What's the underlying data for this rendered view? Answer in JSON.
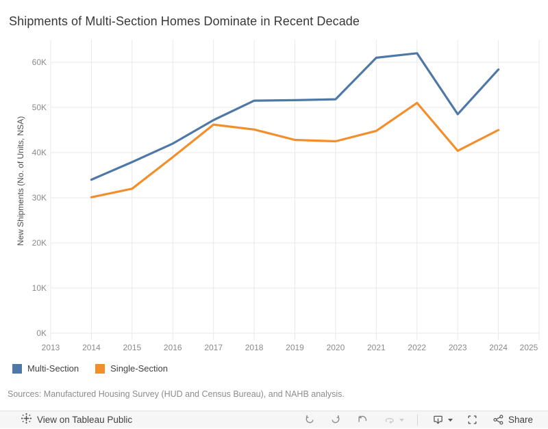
{
  "title": "Shipments of Multi-Section Homes Dominate in Recent Decade",
  "chart_data": {
    "type": "line",
    "x": [
      2014,
      2015,
      2016,
      2017,
      2018,
      2019,
      2020,
      2021,
      2022,
      2023,
      2024
    ],
    "series": [
      {
        "name": "Multi-Section",
        "color": "#4E79A7",
        "values": [
          34000,
          37900,
          42000,
          47200,
          51500,
          51600,
          51800,
          61000,
          62000,
          48500,
          58400
        ]
      },
      {
        "name": "Single-Section",
        "color": "#F28E2B",
        "values": [
          30100,
          32000,
          39000,
          46200,
          45100,
          42800,
          42500,
          44800,
          51000,
          40400,
          45000
        ]
      }
    ],
    "xlabel": "",
    "ylabel": "New Shipments (No. of Units, NSA)",
    "x_ticks": [
      2013,
      2014,
      2015,
      2016,
      2017,
      2018,
      2019,
      2020,
      2021,
      2022,
      2023,
      2024,
      2025
    ],
    "y_ticks": [
      {
        "value": 0,
        "label": "0K"
      },
      {
        "value": 10000,
        "label": "10K"
      },
      {
        "value": 20000,
        "label": "20K"
      },
      {
        "value": 30000,
        "label": "30K"
      },
      {
        "value": 40000,
        "label": "40K"
      },
      {
        "value": 50000,
        "label": "50K"
      },
      {
        "value": 60000,
        "label": "60K"
      }
    ],
    "xlim": [
      2013,
      2025
    ],
    "ylim": [
      0,
      65000
    ],
    "grid": true,
    "legend_position": "bottom-left"
  },
  "legend": {
    "items": [
      {
        "label": "Multi-Section",
        "color": "#4E79A7"
      },
      {
        "label": "Single-Section",
        "color": "#F28E2B"
      }
    ]
  },
  "source_note": "Sources: Manufactured Housing Survey (HUD and Census Bureau), and NAHB analysis.",
  "toolbar": {
    "view_label": "View on Tableau Public",
    "share_label": "Share"
  },
  "colors": {
    "title_text": "#383838",
    "tick_text": "#8a8a8a",
    "axis_title_text": "#4f4f4f",
    "gridline": "#e9e9e9",
    "toolbar_bg": "#f6f6f6",
    "icon_active": "#8a8a8a",
    "icon_disabled": "#cccccc",
    "icon_dark": "#565656"
  }
}
